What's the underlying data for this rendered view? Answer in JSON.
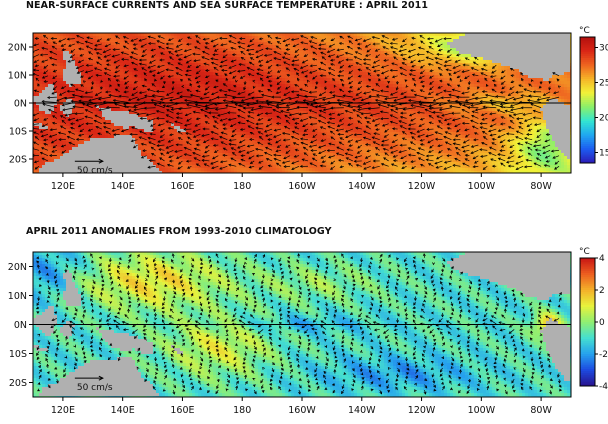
{
  "panels": [
    {
      "title": "NEAR-SURFACE CURRENTS AND SEA SURFACE TEMPERATURE : APRIL 2011",
      "units": "°C",
      "colorbar_ticks": [
        "30",
        "25",
        "20",
        "15"
      ],
      "colorbar_range": [
        13.5,
        31.5
      ],
      "colormap": [
        "#2b1bb7",
        "#1d5df0",
        "#20a8f0",
        "#32e6d2",
        "#8af06a",
        "#f2f238",
        "#f5b428",
        "#ef6420",
        "#d92616",
        "#b2100e"
      ],
      "scale_label": "50 cm/s"
    },
    {
      "title": "APRIL 2011 ANOMALIES FROM 1993-2010 CLIMATOLOGY",
      "units": "°C",
      "colorbar_ticks": [
        "4",
        "2",
        "0",
        "-2",
        "-4"
      ],
      "colorbar_range": [
        -4,
        4
      ],
      "colormap": [
        "#28128e",
        "#1d4ae0",
        "#26a2ee",
        "#45dfd0",
        "#90ef72",
        "#e8f23c",
        "#f4b02a",
        "#ec5e20",
        "#c81414"
      ],
      "scale_label": "50 cm/s"
    }
  ],
  "map": {
    "lon_range": [
      110,
      290
    ],
    "lat_range": [
      -25,
      25
    ],
    "lon_ticks": [
      "120E",
      "140E",
      "160E",
      "180",
      "160W",
      "140W",
      "120W",
      "100W",
      "80W"
    ],
    "lat_ticks": [
      "20N",
      "10N",
      "0N",
      "10S",
      "20S"
    ],
    "land_color": "#b0b0b0",
    "vector_color": "#000000"
  },
  "chart_data": [
    {
      "type": "heatmap",
      "title": "NEAR-SURFACE CURRENTS AND SEA SURFACE TEMPERATURE : APRIL 2011",
      "variable": "sea surface temperature",
      "units": "°C",
      "colorbar_range": [
        13.5,
        31.5
      ],
      "overlay": "near-surface current vectors"
    },
    {
      "type": "heatmap",
      "title": "APRIL 2011 ANOMALIES FROM 1993-2010 CLIMATOLOGY",
      "variable": "SST anomaly",
      "units": "°C",
      "colorbar_range": [
        -4,
        4
      ],
      "overlay": "current anomaly vectors"
    }
  ]
}
